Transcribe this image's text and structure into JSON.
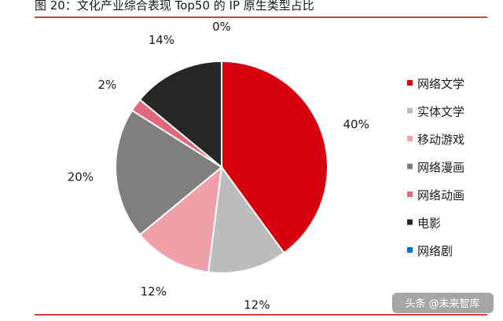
{
  "chart_data": {
    "type": "pie",
    "title": "图 20：文化产业综合表现 Top50 的 IP 原生类型占比",
    "categories": [
      "网络文学",
      "实体文学",
      "移动游戏",
      "网络漫画",
      "网络动画",
      "电影",
      "网络剧"
    ],
    "values": [
      40,
      12,
      12,
      20,
      2,
      14,
      0
    ],
    "value_labels": [
      "40%",
      "12%",
      "12%",
      "20%",
      "2%",
      "14%",
      "0%"
    ],
    "colors": [
      "#d7000f",
      "#bcbcbc",
      "#f0a0a8",
      "#7f7f7f",
      "#e0687a",
      "#262626",
      "#0070c0"
    ],
    "legend_position": "right",
    "grid": false
  },
  "watermark": {
    "text": "头条 @未来智库"
  },
  "colors": {
    "accent": "#c00000"
  }
}
